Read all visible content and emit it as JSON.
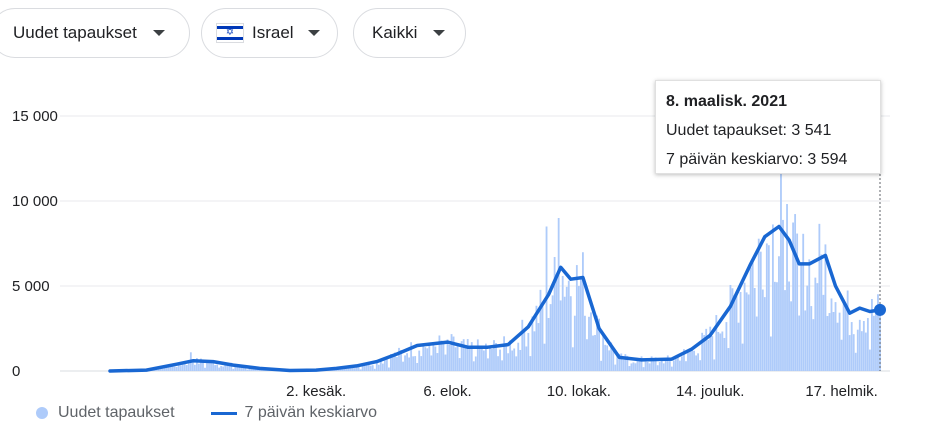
{
  "controls": {
    "metric": "Uudet tapaukset",
    "country": "Israel",
    "country_flag_icon": "israel-flag-icon",
    "range": "Kaikki"
  },
  "tooltip": {
    "date": "8. maalisk. 2021",
    "cases_line": "Uudet tapaukset: 3 541",
    "avg_line": "7 päivän keskiarvo: 3 594"
  },
  "legend": {
    "bars": "Uudet tapaukset",
    "line": "7 päivän keskiarvo"
  },
  "colors": {
    "bars": "#aecbfa",
    "line": "#1967d2",
    "grid": "#e8eaed",
    "axis_text": "#202124"
  },
  "chart_data": {
    "type": "bar",
    "title": "",
    "xlabel": "",
    "ylabel": "",
    "ylim": [
      0,
      15000
    ],
    "yticks": [
      {
        "value": 0,
        "label": "0"
      },
      {
        "value": 5000,
        "label": "5 000"
      },
      {
        "value": 10000,
        "label": "10 000"
      },
      {
        "value": 15000,
        "label": "15 000"
      }
    ],
    "x_start": "2020-02-21",
    "x_end": "2021-03-08",
    "xticks": [
      {
        "date": "2020-06-02",
        "label": "2. kesäk."
      },
      {
        "date": "2020-08-06",
        "label": "6. elok."
      },
      {
        "date": "2020-10-10",
        "label": "10. lokak."
      },
      {
        "date": "2020-12-14",
        "label": "14. jouluk."
      },
      {
        "date": "2021-02-17",
        "label": "17. helmik."
      }
    ],
    "grid": true,
    "legend_position": "bottom-left",
    "series": [
      {
        "name": "7 päivän keskiarvo",
        "type": "line",
        "points": [
          [
            "2020-02-21",
            0
          ],
          [
            "2020-03-10",
            50
          ],
          [
            "2020-03-25",
            400
          ],
          [
            "2020-04-02",
            600
          ],
          [
            "2020-04-12",
            550
          ],
          [
            "2020-04-22",
            350
          ],
          [
            "2020-05-05",
            150
          ],
          [
            "2020-05-20",
            30
          ],
          [
            "2020-06-02",
            50
          ],
          [
            "2020-06-12",
            150
          ],
          [
            "2020-06-22",
            300
          ],
          [
            "2020-07-02",
            550
          ],
          [
            "2020-07-12",
            1000
          ],
          [
            "2020-07-22",
            1500
          ],
          [
            "2020-08-06",
            1700
          ],
          [
            "2020-08-16",
            1400
          ],
          [
            "2020-08-26",
            1400
          ],
          [
            "2020-09-05",
            1550
          ],
          [
            "2020-09-15",
            2600
          ],
          [
            "2020-09-25",
            4500
          ],
          [
            "2020-10-01",
            6100
          ],
          [
            "2020-10-06",
            5400
          ],
          [
            "2020-10-12",
            5500
          ],
          [
            "2020-10-20",
            2500
          ],
          [
            "2020-10-30",
            800
          ],
          [
            "2020-11-10",
            650
          ],
          [
            "2020-11-25",
            700
          ],
          [
            "2020-12-05",
            1300
          ],
          [
            "2020-12-14",
            2100
          ],
          [
            "2020-12-24",
            3800
          ],
          [
            "2021-01-03",
            6300
          ],
          [
            "2021-01-10",
            7900
          ],
          [
            "2021-01-17",
            8500
          ],
          [
            "2021-01-22",
            7700
          ],
          [
            "2021-01-27",
            6300
          ],
          [
            "2021-02-01",
            6300
          ],
          [
            "2021-02-09",
            6800
          ],
          [
            "2021-02-14",
            5000
          ],
          [
            "2021-02-21",
            3400
          ],
          [
            "2021-02-26",
            3700
          ],
          [
            "2021-03-03",
            3500
          ],
          [
            "2021-03-08",
            3594
          ]
        ]
      },
      {
        "name": "Uudet tapaukset",
        "type": "bar",
        "peaks": [
          [
            "2020-04-01",
            1100
          ],
          [
            "2020-09-24",
            8500
          ],
          [
            "2020-09-30",
            9000
          ],
          [
            "2021-01-18",
            11700
          ]
        ],
        "last": [
          "2021-03-08",
          3541
        ]
      }
    ]
  }
}
